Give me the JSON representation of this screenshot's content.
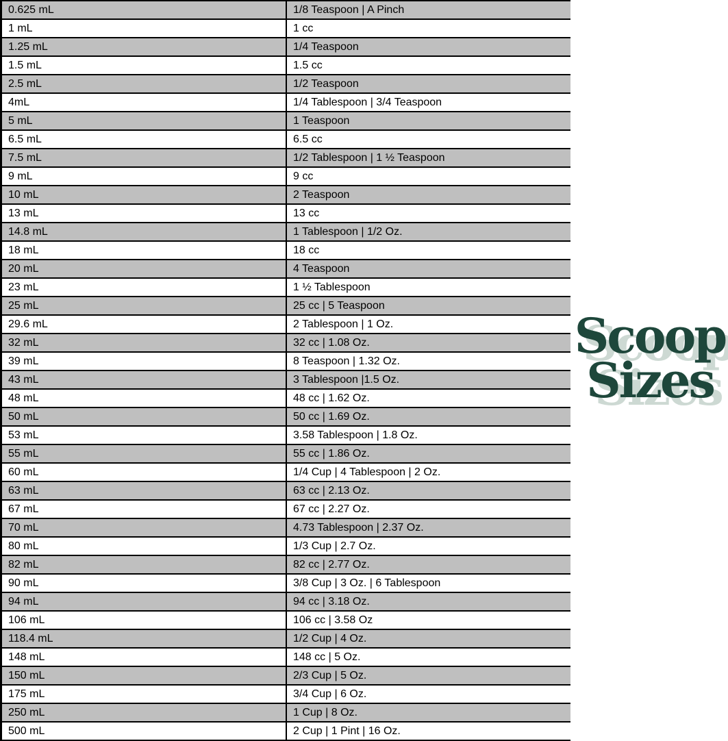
{
  "chart_data": {
    "type": "table",
    "title": "Scoop Sizes",
    "rows": [
      [
        "0.625 mL",
        "1/8 Teaspoon | A Pinch"
      ],
      [
        "1 mL",
        "1 cc"
      ],
      [
        "1.25 mL",
        "1/4 Teaspoon"
      ],
      [
        "1.5 mL",
        "1.5 cc"
      ],
      [
        "2.5 mL",
        "1/2 Teaspoon"
      ],
      [
        "4mL",
        "1/4 Tablespoon | 3/4 Teaspoon"
      ],
      [
        "5 mL",
        "1 Teaspoon"
      ],
      [
        "6.5 mL",
        "6.5 cc"
      ],
      [
        "7.5 mL",
        "1/2 Tablespoon | 1 ½ Teaspoon"
      ],
      [
        "9 mL",
        "9 cc"
      ],
      [
        "10 mL",
        "2 Teaspoon"
      ],
      [
        "13 mL",
        "13 cc"
      ],
      [
        "14.8 mL",
        "1 Tablespoon | 1/2 Oz."
      ],
      [
        "18 mL",
        "18 cc"
      ],
      [
        "20 mL",
        "4 Teaspoon"
      ],
      [
        "23 mL",
        "1 ½ Tablespoon"
      ],
      [
        "25 mL",
        "25 cc | 5 Teaspoon"
      ],
      [
        "29.6 mL",
        "2 Tablespoon | 1 Oz."
      ],
      [
        "32 mL",
        "32 cc | 1.08 Oz."
      ],
      [
        "39 mL",
        "8 Teaspoon | 1.32 Oz."
      ],
      [
        "43 mL",
        "3 Tablespoon |1.5 Oz."
      ],
      [
        "48 mL",
        "48 cc | 1.62 Oz."
      ],
      [
        "50 mL",
        "50 cc | 1.69 Oz."
      ],
      [
        "53 mL",
        "3.58 Tablespoon | 1.8 Oz."
      ],
      [
        "55 mL",
        "55 cc | 1.86 Oz."
      ],
      [
        "60 mL",
        "1/4 Cup | 4 Tablespoon | 2 Oz."
      ],
      [
        "63 mL",
        "63 cc | 2.13 Oz."
      ],
      [
        "67 mL",
        "67 cc | 2.27 Oz."
      ],
      [
        "70 mL",
        "4.73 Tablespoon | 2.37 Oz."
      ],
      [
        "80 mL",
        "1/3 Cup | 2.7 Oz."
      ],
      [
        "82 mL",
        "82 cc | 2.77 Oz."
      ],
      [
        "90 mL",
        "3/8 Cup | 3 Oz. | 6 Tablespoon"
      ],
      [
        "94 mL",
        "94 cc | 3.18 Oz."
      ],
      [
        "106 mL",
        "106 cc | 3.58 Oz"
      ],
      [
        "118.4 mL",
        "1/2 Cup | 4 Oz."
      ],
      [
        "148 mL",
        "148 cc | 5 Oz."
      ],
      [
        "150 mL",
        "2/3 Cup | 5 Oz."
      ],
      [
        "175 mL",
        "3/4 Cup | 6 Oz."
      ],
      [
        "250 mL",
        "1 Cup | 8 Oz."
      ],
      [
        "500 mL",
        "2 Cup | 1 Pint | 16 Oz."
      ]
    ]
  },
  "logo": {
    "line1": "Scoop",
    "line2": "Sizes"
  },
  "colors": {
    "row_shade": "#bfbfbf",
    "border": "#000000",
    "logo_green": "#1e473b",
    "logo_shadow": "#cdd9d3"
  }
}
